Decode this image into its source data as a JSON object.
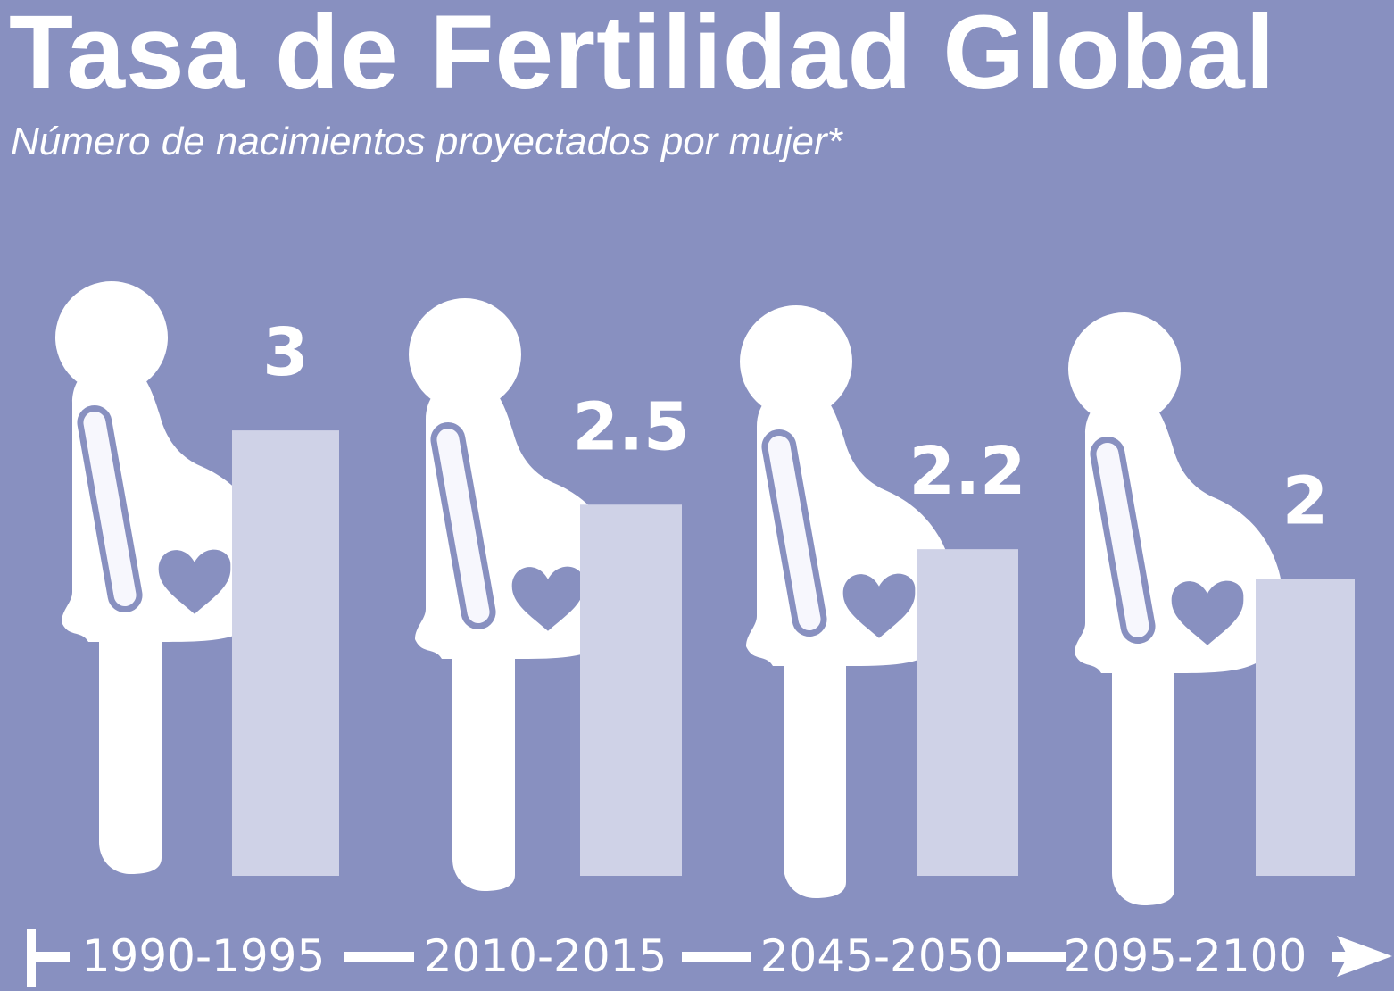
{
  "title": "Tasa de Fertilidad Global",
  "subtitle": "Número de nacimientos proyectados por mujer*",
  "colors": {
    "background": "#8890c0",
    "bar": "#cfd2e7",
    "figure": "#ffffff",
    "accent": "#8890c0"
  },
  "chart_data": {
    "type": "bar",
    "title": "Tasa de Fertilidad Global",
    "subtitle": "Número de nacimientos proyectados por mujer*",
    "categories": [
      "1990-1995",
      "2010-2015",
      "2045-2050",
      "2095-2100"
    ],
    "values": [
      3,
      2.5,
      2.2,
      2
    ],
    "value_labels": [
      "3",
      "2.5",
      "2.2",
      "2"
    ],
    "xlabel": "",
    "ylabel": "",
    "grid": false,
    "legend": "none",
    "icon": "pregnant-woman-icon"
  }
}
